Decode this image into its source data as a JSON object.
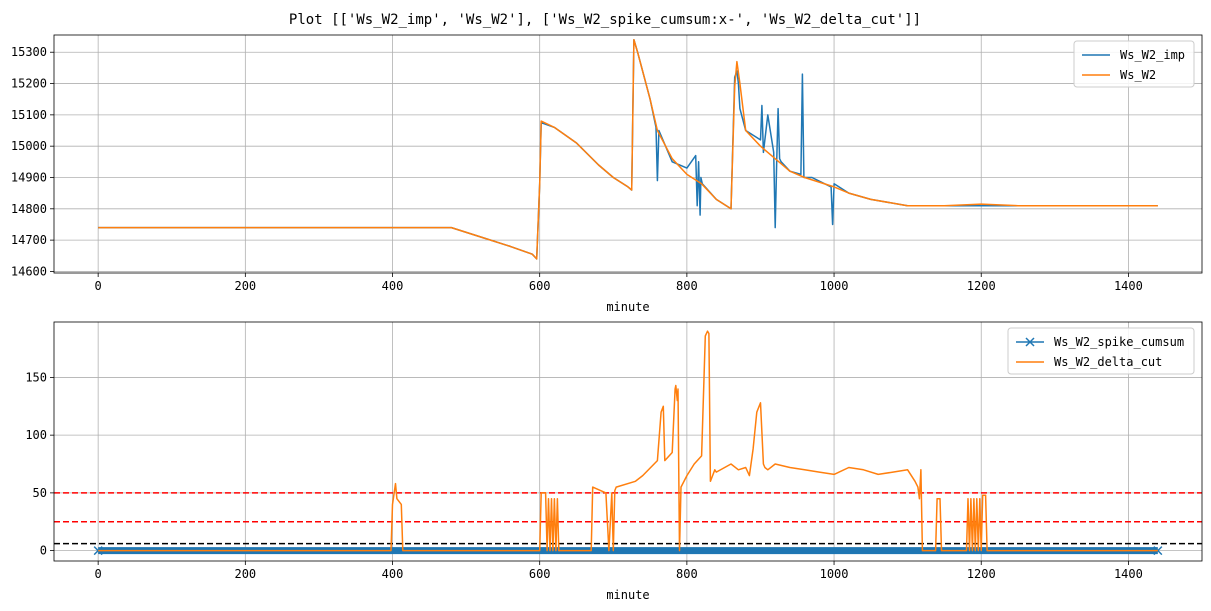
{
  "figure": {
    "title": "Plot [['Ws_W2_imp', 'Ws_W2'], ['Ws_W2_spike_cumsum:x-', 'Ws_W2_delta_cut']]"
  },
  "colors": {
    "blue": "#1f77b4",
    "orange": "#ff7f0e",
    "hline_red": "#ff0000",
    "hline_black": "#000000",
    "grid": "#b0b0b0"
  },
  "chart_data": [
    {
      "type": "line",
      "xlabel": "minute",
      "ylabel": "",
      "xlim": [
        -60,
        1500
      ],
      "ylim": [
        14595,
        15355
      ],
      "x_ticks": [
        0,
        200,
        400,
        600,
        800,
        1000,
        1200,
        1400
      ],
      "y_ticks": [
        14600,
        14700,
        14800,
        14900,
        15000,
        15100,
        15200,
        15300
      ],
      "grid": true,
      "legend_position": "top-right",
      "series": [
        {
          "name": "Ws_W2_imp",
          "color": "#1f77b4",
          "x": [
            0,
            100,
            400,
            480,
            520,
            560,
            590,
            596,
            600,
            602,
            620,
            650,
            680,
            700,
            720,
            725,
            728,
            733,
            750,
            758,
            760,
            762,
            780,
            800,
            812,
            814,
            816,
            818,
            819,
            821,
            840,
            860,
            865,
            868,
            870,
            872,
            880,
            900,
            902,
            904,
            910,
            918,
            920,
            922,
            924,
            926,
            928,
            940,
            955,
            957,
            959,
            970,
            996,
            998,
            1000,
            1020,
            1050,
            1100,
            1150,
            1200,
            1250,
            1300,
            1440
          ],
          "y": [
            14740,
            14740,
            14740,
            14740,
            14710,
            14680,
            14655,
            14640,
            14880,
            15075,
            15060,
            15010,
            14940,
            14900,
            14870,
            14860,
            15340,
            15300,
            15150,
            15060,
            14890,
            15050,
            14950,
            14930,
            14970,
            14810,
            14950,
            14780,
            14900,
            14880,
            14830,
            14800,
            15220,
            15240,
            15200,
            15120,
            15050,
            15020,
            15130,
            14980,
            15100,
            14980,
            14740,
            14950,
            15120,
            14960,
            14950,
            14920,
            14910,
            15230,
            14900,
            14900,
            14870,
            14750,
            14880,
            14850,
            14830,
            14810,
            14810,
            14810,
            14810,
            14810,
            14810
          ]
        },
        {
          "name": "Ws_W2",
          "color": "#ff7f0e",
          "x": [
            0,
            100,
            400,
            480,
            520,
            560,
            590,
            596,
            600,
            602,
            620,
            650,
            680,
            700,
            720,
            725,
            728,
            733,
            750,
            760,
            780,
            800,
            820,
            840,
            860,
            865,
            868,
            872,
            880,
            900,
            920,
            940,
            960,
            1000,
            1020,
            1050,
            1100,
            1150,
            1200,
            1250,
            1300,
            1440
          ],
          "y": [
            14740,
            14740,
            14740,
            14740,
            14710,
            14680,
            14655,
            14640,
            14880,
            15080,
            15060,
            15010,
            14940,
            14900,
            14870,
            14860,
            15340,
            15300,
            15150,
            15050,
            14960,
            14910,
            14880,
            14830,
            14800,
            15190,
            15270,
            15200,
            15050,
            15000,
            14960,
            14920,
            14900,
            14870,
            14850,
            14830,
            14810,
            14810,
            14815,
            14810,
            14810,
            14810
          ]
        }
      ]
    },
    {
      "type": "line",
      "xlabel": "minute",
      "ylabel": "",
      "xlim": [
        -60,
        1500
      ],
      "ylim": [
        -9,
        198
      ],
      "x_ticks": [
        0,
        200,
        400,
        600,
        800,
        1000,
        1200,
        1400
      ],
      "y_ticks": [
        0,
        50,
        100,
        150
      ],
      "grid": true,
      "legend_position": "top-right",
      "hlines": [
        {
          "y": 50,
          "color": "#ff0000",
          "style": "dashed"
        },
        {
          "y": 25,
          "color": "#ff0000",
          "style": "dashed"
        },
        {
          "y": 6,
          "color": "#000000",
          "style": "dashed"
        }
      ],
      "series": [
        {
          "name": "Ws_W2_spike_cumsum",
          "color": "#1f77b4",
          "marker": "x",
          "x": [
            0,
            1440
          ],
          "y": [
            0,
            0
          ]
        },
        {
          "name": "Ws_W2_delta_cut",
          "color": "#ff7f0e",
          "x": [
            0,
            398,
            400,
            404,
            406,
            412,
            414,
            600,
            602,
            608,
            610,
            612,
            614,
            616,
            618,
            620,
            622,
            624,
            626,
            670,
            672,
            690,
            694,
            698,
            700,
            702,
            704,
            730,
            740,
            760,
            765,
            768,
            770,
            780,
            784,
            785,
            787,
            788,
            790,
            792,
            800,
            810,
            820,
            825,
            828,
            830,
            832,
            835,
            838,
            840,
            860,
            870,
            880,
            885,
            890,
            895,
            900,
            904,
            906,
            910,
            920,
            940,
            960,
            980,
            1000,
            1020,
            1040,
            1060,
            1080,
            1100,
            1110,
            1114,
            1116,
            1118,
            1120,
            1122,
            1138,
            1140,
            1144,
            1146,
            1148,
            1180,
            1182,
            1184,
            1186,
            1188,
            1190,
            1192,
            1194,
            1196,
            1198,
            1200,
            1202,
            1206,
            1208,
            1440
          ],
          "y": [
            0,
            0,
            40,
            58,
            45,
            40,
            0,
            0,
            50,
            50,
            0,
            45,
            0,
            45,
            0,
            45,
            0,
            45,
            0,
            0,
            55,
            50,
            0,
            50,
            0,
            52,
            55,
            60,
            65,
            78,
            120,
            125,
            78,
            85,
            140,
            143,
            130,
            140,
            0,
            55,
            65,
            75,
            82,
            186,
            190,
            188,
            60,
            65,
            70,
            68,
            75,
            70,
            72,
            65,
            88,
            120,
            128,
            75,
            72,
            70,
            75,
            72,
            70,
            68,
            66,
            72,
            70,
            66,
            68,
            70,
            60,
            55,
            45,
            70,
            0,
            0,
            0,
            45,
            45,
            0,
            0,
            0,
            45,
            0,
            45,
            0,
            45,
            0,
            45,
            0,
            45,
            0,
            48,
            48,
            0,
            0
          ]
        }
      ]
    }
  ]
}
